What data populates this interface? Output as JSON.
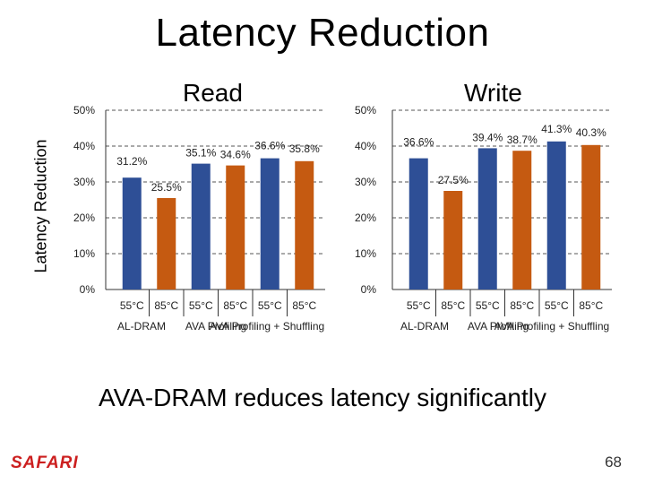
{
  "slide": {
    "title": "Latency Reduction",
    "conclusion": "AVA-DRAM reduces latency significantly",
    "logo": "SAFARI",
    "page_number": "68"
  },
  "chart_data": [
    {
      "type": "bar",
      "title": "Read",
      "ylabel": "Latency Reduction",
      "ylim": [
        0,
        50
      ],
      "yticks": [
        "0%",
        "10%",
        "20%",
        "30%",
        "40%",
        "50%"
      ],
      "categories": [
        "55°C",
        "85°C",
        "55°C",
        "85°C",
        "55°C",
        "85°C"
      ],
      "groups": [
        "AL-DRAM",
        "AVA Profiling",
        "AVA Profiling + Shuffling"
      ],
      "values": [
        31.2,
        25.5,
        35.1,
        34.6,
        36.6,
        35.8
      ],
      "labels": [
        "31.2%",
        "25.5%",
        "35.1%",
        "34.6%",
        "36.6%",
        "35.8%"
      ],
      "colors": [
        "#2e4f96",
        "#c55a11",
        "#2e4f96",
        "#c55a11",
        "#2e4f96",
        "#c55a11"
      ]
    },
    {
      "type": "bar",
      "title": "Write",
      "ylim": [
        0,
        50
      ],
      "yticks": [
        "0%",
        "10%",
        "20%",
        "30%",
        "40%",
        "50%"
      ],
      "categories": [
        "55°C",
        "85°C",
        "55°C",
        "85°C",
        "55°C",
        "85°C"
      ],
      "groups": [
        "AL-DRAM",
        "AVA Profiling",
        "AVA Profiling + Shuffling"
      ],
      "values": [
        36.6,
        27.5,
        39.4,
        38.7,
        41.3,
        40.3
      ],
      "labels": [
        "36.6%",
        "27.5%",
        "39.4%",
        "38.7%",
        "41.3%",
        "40.3%"
      ],
      "colors": [
        "#2e4f96",
        "#c55a11",
        "#2e4f96",
        "#c55a11",
        "#2e4f96",
        "#c55a11"
      ]
    }
  ]
}
